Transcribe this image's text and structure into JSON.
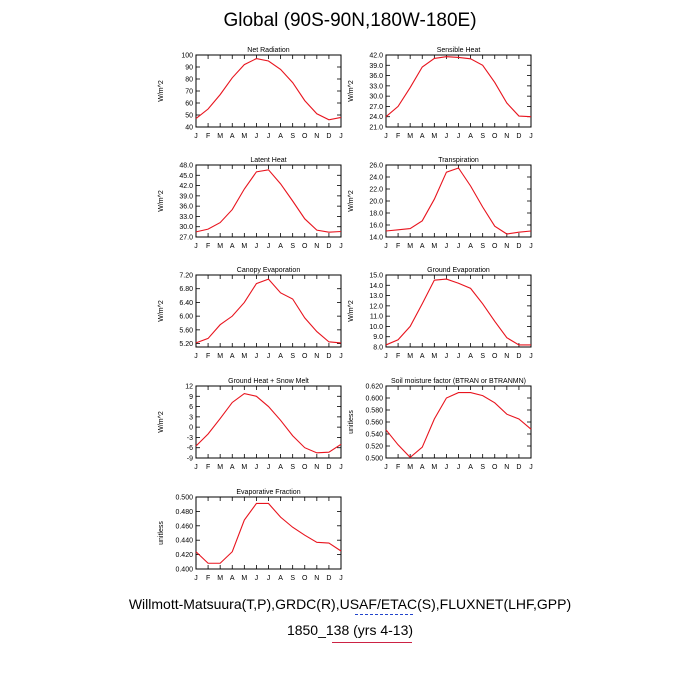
{
  "title": "Global (90S-90N,180W-180E)",
  "footer": {
    "line1": "Willmott-Matsuura(T,P),GRDC(R),USAF/ETAC(S),FLUXNET(LHF,GPP)",
    "line2": "1850_138 (yrs 4-13)"
  },
  "colors": {
    "line": "#e8141e",
    "axis": "#000000"
  },
  "chart_data": [
    {
      "type": "line",
      "title": "Net Radiation",
      "ylabel": "W/m^2",
      "categories": [
        "J",
        "F",
        "M",
        "A",
        "M",
        "J",
        "J",
        "A",
        "S",
        "O",
        "N",
        "D",
        "J"
      ],
      "values": [
        47,
        55,
        67,
        81,
        92,
        97,
        95,
        88,
        77,
        62,
        51,
        46,
        48
      ],
      "ylim": [
        40,
        100
      ],
      "yticks": [
        "40",
        "50",
        "60",
        "70",
        "80",
        "90",
        "100"
      ]
    },
    {
      "type": "line",
      "title": "Sensible Heat",
      "ylabel": "W/m^2",
      "categories": [
        "J",
        "F",
        "M",
        "A",
        "M",
        "J",
        "J",
        "A",
        "S",
        "O",
        "N",
        "D",
        "J"
      ],
      "values": [
        24.0,
        27.0,
        32.5,
        38.5,
        41.0,
        41.5,
        41.3,
        40.9,
        39.0,
        34.0,
        28.0,
        24.2,
        24.0
      ],
      "ylim": [
        21.0,
        42.0
      ],
      "yticks": [
        "21.0",
        "24.0",
        "27.0",
        "30.0",
        "33.0",
        "36.0",
        "39.0",
        "42.0"
      ]
    },
    {
      "type": "line",
      "title": "Latent Heat",
      "ylabel": "W/m^2",
      "categories": [
        "J",
        "F",
        "M",
        "A",
        "M",
        "J",
        "J",
        "A",
        "S",
        "O",
        "N",
        "D",
        "J"
      ],
      "values": [
        28.5,
        29.3,
        31.2,
        35.0,
        41.0,
        46.0,
        46.6,
        42.5,
        37.5,
        32.3,
        29.0,
        28.4,
        28.6
      ],
      "ylim": [
        27.0,
        48.0
      ],
      "yticks": [
        "27.0",
        "30.0",
        "33.0",
        "36.0",
        "39.0",
        "42.0",
        "45.0",
        "48.0"
      ]
    },
    {
      "type": "line",
      "title": "Transpiration",
      "ylabel": "W/m^2",
      "categories": [
        "J",
        "F",
        "M",
        "A",
        "M",
        "J",
        "J",
        "A",
        "S",
        "O",
        "N",
        "D",
        "J"
      ],
      "values": [
        15.0,
        15.2,
        15.4,
        16.7,
        20.3,
        24.8,
        25.5,
        22.5,
        19.0,
        15.8,
        14.5,
        14.8,
        15.0
      ],
      "ylim": [
        14.0,
        26.0
      ],
      "yticks": [
        "14.0",
        "16.0",
        "18.0",
        "20.0",
        "22.0",
        "24.0",
        "26.0"
      ]
    },
    {
      "type": "line",
      "title": "Canopy Evaporation",
      "ylabel": "W/m^2",
      "categories": [
        "J",
        "F",
        "M",
        "A",
        "M",
        "J",
        "J",
        "A",
        "S",
        "O",
        "N",
        "D",
        "J"
      ],
      "values": [
        5.22,
        5.35,
        5.75,
        6.0,
        6.4,
        6.95,
        7.08,
        6.68,
        6.5,
        5.95,
        5.55,
        5.25,
        5.22
      ],
      "ylim": [
        5.1,
        7.2
      ],
      "yticks": [
        "5.20",
        "5.60",
        "6.00",
        "6.40",
        "6.80",
        "7.20"
      ]
    },
    {
      "type": "line",
      "title": "Ground Evaporation",
      "ylabel": "W/m^2",
      "categories": [
        "J",
        "F",
        "M",
        "A",
        "M",
        "J",
        "J",
        "A",
        "S",
        "O",
        "N",
        "D",
        "J"
      ],
      "values": [
        8.2,
        8.7,
        10.0,
        12.2,
        14.5,
        14.6,
        14.2,
        13.7,
        12.2,
        10.5,
        8.9,
        8.2,
        8.2
      ],
      "ylim": [
        8.0,
        15.0
      ],
      "yticks": [
        "8.0",
        "9.0",
        "10.0",
        "11.0",
        "12.0",
        "13.0",
        "14.0",
        "15.0"
      ]
    },
    {
      "type": "line",
      "title": "Ground Heat + Snow Melt",
      "ylabel": "W/m^2",
      "categories": [
        "J",
        "F",
        "M",
        "A",
        "M",
        "J",
        "J",
        "A",
        "S",
        "O",
        "N",
        "D",
        "J"
      ],
      "values": [
        -5.5,
        -2.0,
        2.5,
        7.2,
        9.8,
        9.0,
        6.0,
        2.0,
        -2.5,
        -6.0,
        -7.5,
        -7.3,
        -5.0
      ],
      "ylim": [
        -9,
        12
      ],
      "yticks": [
        "-9",
        "-6",
        "-3",
        "0",
        "3",
        "6",
        "9",
        "12"
      ]
    },
    {
      "type": "line",
      "title": "Soil moisture factor (BTRAN or BTRANMN)",
      "ylabel": "unitless",
      "categories": [
        "J",
        "F",
        "M",
        "A",
        "M",
        "J",
        "J",
        "A",
        "S",
        "O",
        "N",
        "D",
        "J"
      ],
      "values": [
        0.547,
        0.522,
        0.501,
        0.518,
        0.565,
        0.6,
        0.609,
        0.609,
        0.604,
        0.592,
        0.573,
        0.565,
        0.548
      ],
      "ylim": [
        0.5,
        0.62
      ],
      "yticks": [
        "0.500",
        "0.520",
        "0.540",
        "0.560",
        "0.580",
        "0.600",
        "0.620"
      ]
    },
    {
      "type": "line",
      "title": "Evaporative Fraction",
      "ylabel": "unitless",
      "categories": [
        "J",
        "F",
        "M",
        "A",
        "M",
        "J",
        "J",
        "A",
        "S",
        "O",
        "N",
        "D",
        "J"
      ],
      "values": [
        0.424,
        0.408,
        0.408,
        0.424,
        0.468,
        0.491,
        0.491,
        0.472,
        0.458,
        0.447,
        0.437,
        0.436,
        0.425
      ],
      "ylim": [
        0.4,
        0.5
      ],
      "yticks": [
        "0.400",
        "0.420",
        "0.440",
        "0.460",
        "0.480",
        "0.500"
      ]
    }
  ]
}
